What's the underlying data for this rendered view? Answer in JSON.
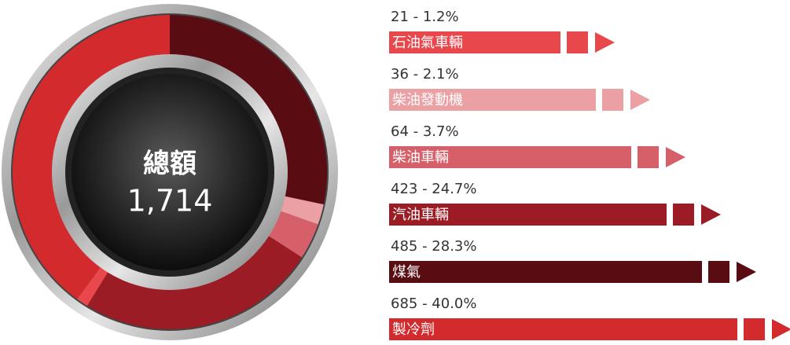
{
  "chart_data": {
    "type": "donut",
    "center_label": "總額",
    "total": {
      "value": 1714,
      "label": "1,714"
    },
    "categories": [
      "煤氣",
      "柴油發動機",
      "柴油車輛",
      "汽油車輛",
      "石油氣車輛",
      "製冷劑"
    ],
    "values": [
      485,
      36,
      64,
      423,
      21,
      685
    ],
    "value_labels": [
      "485 - 28.3%",
      "36 - 2.1%",
      "64 - 3.7%",
      "423 - 24.7%",
      "21 - 1.2%",
      "685 - 40.0%"
    ],
    "colors": [
      "#5a0c13",
      "#eba0a4",
      "#d5606a",
      "#9b1c24",
      "#e8474c",
      "#d32a2e"
    ]
  }
}
